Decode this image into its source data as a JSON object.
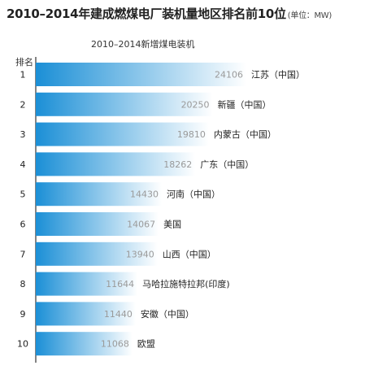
{
  "header": {
    "title": "2010–2014年建成燃煤电厂装机量地区排名前10位",
    "unit": "(单位：MW)"
  },
  "chart_data": {
    "type": "bar",
    "orientation": "horizontal",
    "title": "2010–2014年建成燃煤电厂装机量地区排名前10位",
    "subtitle": "2010–2014新增煤电装机",
    "rank_header": "排名",
    "ranks": [
      "1",
      "2",
      "3",
      "4",
      "5",
      "6",
      "7",
      "8",
      "9",
      "10"
    ],
    "categories": [
      "江苏（中国）",
      "新疆（中国）",
      "内蒙古（中国）",
      "广东（中国）",
      "河南（中国）",
      "美国",
      "山西（中国）",
      "马哈拉施特拉邦(印度)",
      "安徽（中国）",
      "欧盟"
    ],
    "values": [
      24106,
      20250,
      19810,
      18262,
      14430,
      14067,
      13940,
      11644,
      11440,
      11068
    ],
    "value_labels": [
      "24106",
      "20250",
      "19810",
      "18262",
      "14430",
      "14067",
      "13940",
      "11644",
      "11440",
      "11068"
    ],
    "xlim": [
      0,
      25000
    ],
    "grid": false,
    "legend": "none",
    "colors": {
      "bar_start": "#1b8fd6",
      "bar_end": "#ffffff"
    }
  }
}
